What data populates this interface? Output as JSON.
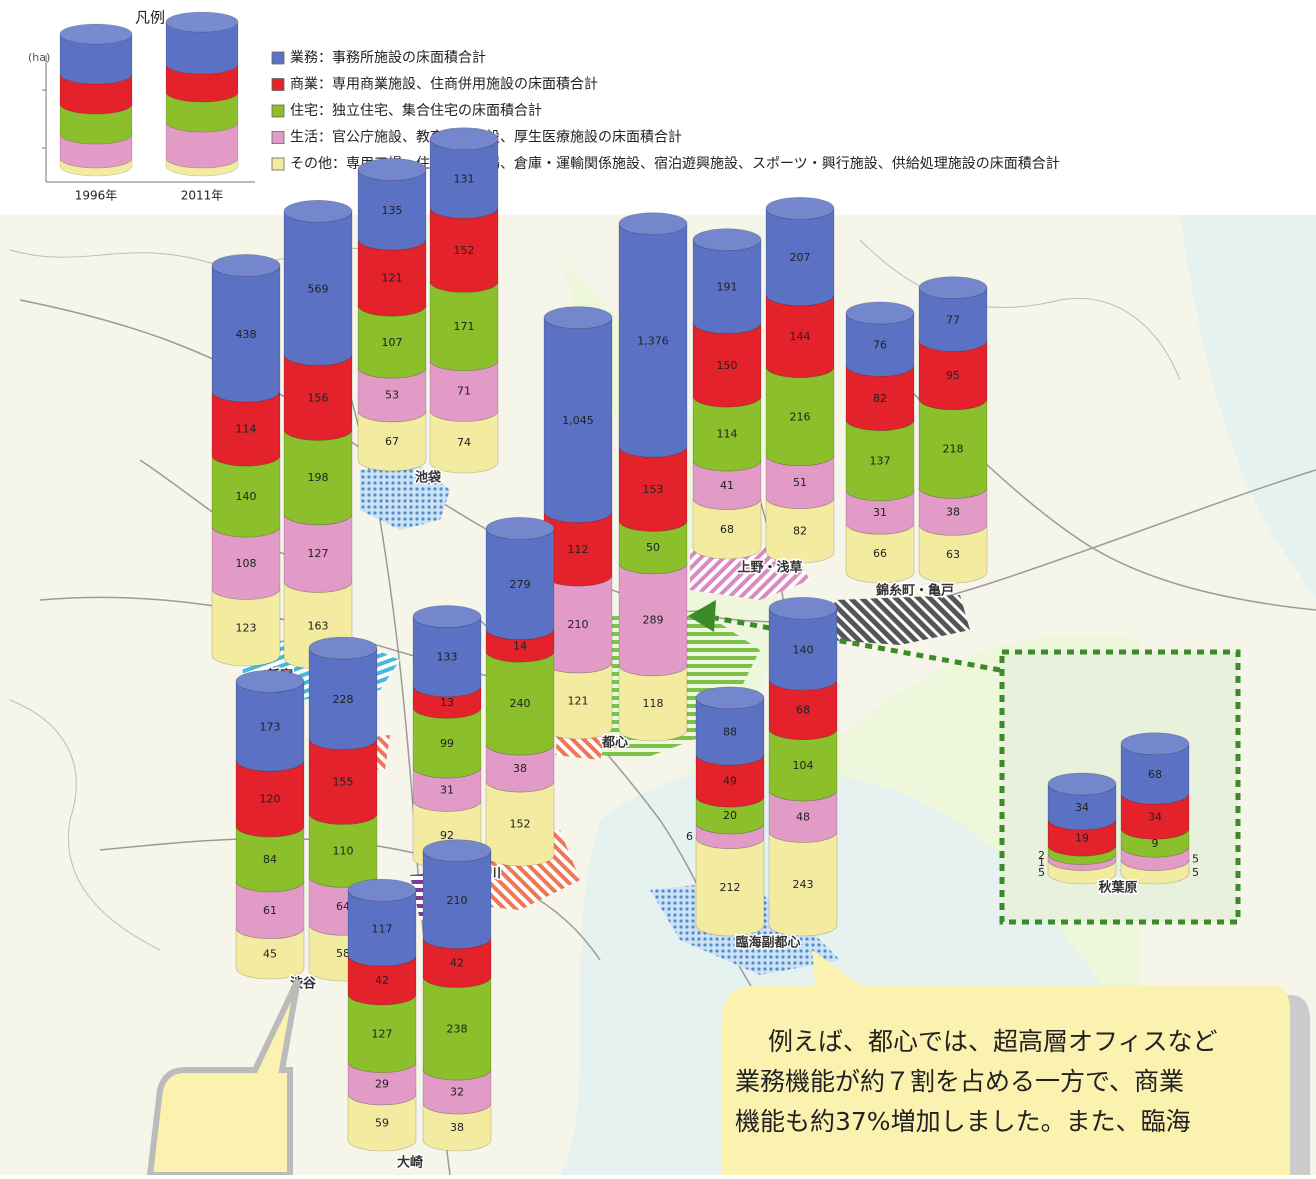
{
  "legend": {
    "title": "凡例",
    "unit": "(ha)",
    "years": [
      "1996年",
      "2011年"
    ],
    "items": [
      {
        "label": "業務：事務所施設の床面積合計",
        "color": "#5b72c4"
      },
      {
        "label": "商業：専用商業施設、住商併用施設の床面積合計",
        "color": "#e3222b"
      },
      {
        "label": "住宅：独立住宅、集合住宅の床面積合計",
        "color": "#8cbf2c"
      },
      {
        "label": "生活：官公庁施設、教育文化施設、厚生医療施設の床面積合計",
        "color": "#e29ac6"
      },
      {
        "label": "その他：専用工場、住居併用工場、倉庫・運輸関係施設、宿泊遊興施設、スポーツ・興行施設、供給処理施設の床面積合計",
        "color": "#f2eba0"
      }
    ]
  },
  "areas": [
    {
      "name": "池袋",
      "bars": [
        {
          "values": [
            135,
            121,
            107,
            53,
            67
          ]
        },
        {
          "values": [
            131,
            152,
            171,
            71,
            74
          ]
        }
      ]
    },
    {
      "name": "上野・浅草",
      "bars": [
        {
          "values": [
            191,
            150,
            114,
            41,
            68
          ]
        },
        {
          "values": [
            207,
            144,
            216,
            51,
            82
          ]
        }
      ]
    },
    {
      "name": "錦糸町・亀戸",
      "bars": [
        {
          "values": [
            76,
            82,
            137,
            31,
            66
          ]
        },
        {
          "values": [
            77,
            95,
            218,
            38,
            63
          ]
        }
      ]
    },
    {
      "name": "新宿",
      "bars": [
        {
          "values": [
            438,
            114,
            140,
            108,
            123
          ]
        },
        {
          "values": [
            569,
            156,
            198,
            127,
            163
          ]
        }
      ]
    },
    {
      "name": "都心",
      "bars": [
        {
          "values": [
            1045,
            112,
            null,
            210,
            121
          ],
          "value_labels": [
            "1,045",
            "112",
            null,
            "210",
            "121"
          ]
        },
        {
          "values": [
            1376,
            153,
            50,
            289,
            118
          ],
          "value_labels": [
            "1,376",
            "153",
            "50",
            "289",
            "118"
          ]
        }
      ]
    },
    {
      "name": "品川",
      "bars": [
        {
          "values": [
            133,
            13,
            99,
            31,
            92
          ]
        },
        {
          "values": [
            279,
            14,
            240,
            38,
            152
          ]
        }
      ]
    },
    {
      "name": "臨海副都心",
      "bars": [
        {
          "values": [
            88,
            49,
            20,
            6,
            212
          ]
        },
        {
          "values": [
            140,
            68,
            104,
            48,
            243
          ]
        }
      ]
    },
    {
      "name": "秋葉原",
      "bars": [
        {
          "values": [
            34,
            19,
            2,
            1,
            5
          ]
        },
        {
          "values": [
            68,
            34,
            9,
            5,
            5
          ]
        }
      ]
    },
    {
      "name": "渋谷",
      "bars": [
        {
          "values": [
            173,
            120,
            84,
            61,
            45
          ]
        },
        {
          "values": [
            228,
            155,
            110,
            64,
            58
          ]
        }
      ]
    },
    {
      "name": "大崎",
      "bars": [
        {
          "values": [
            117,
            42,
            127,
            29,
            59
          ]
        },
        {
          "values": [
            210,
            42,
            238,
            32,
            38
          ]
        }
      ]
    }
  ],
  "callout": {
    "lines": [
      "例えば、都心では、超高層オフィスなど",
      "業務機能が約７割を占める一方で、商業",
      "機能も約37%増加しました。また、臨海"
    ]
  }
}
